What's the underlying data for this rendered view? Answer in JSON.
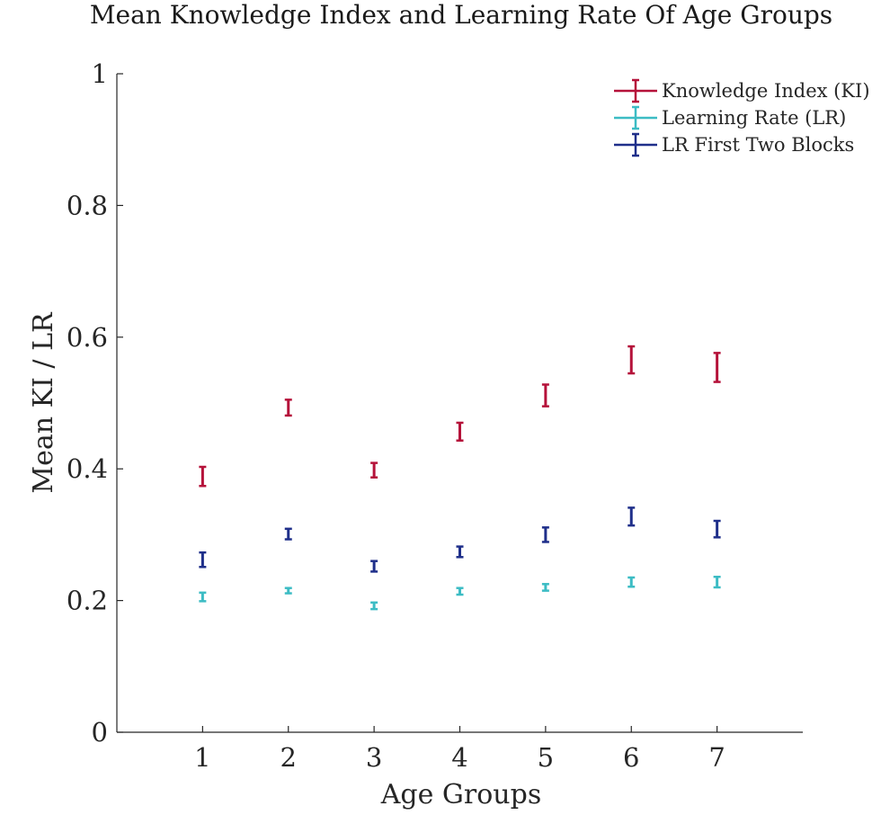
{
  "chart_data": {
    "type": "errorbar",
    "title": "Mean Knowledge Index and Learning Rate Of Age Groups",
    "xlabel": "Age Groups",
    "ylabel": "Mean KI / LR",
    "xlim": [
      0,
      8
    ],
    "ylim": [
      0,
      1
    ],
    "x": [
      1,
      2,
      3,
      4,
      5,
      6,
      7
    ],
    "xticks": [
      "1",
      "2",
      "3",
      "4",
      "5",
      "6",
      "7"
    ],
    "yticks": [
      "0",
      "0.2",
      "0.4",
      "0.6",
      "0.8",
      "1"
    ],
    "ytick_values": [
      0,
      0.2,
      0.4,
      0.6,
      0.8,
      1
    ],
    "grid": false,
    "legend_position": "top-right",
    "series": [
      {
        "name": "Knowledge Index (KI)",
        "color": "#b5123a",
        "low": [
          0.374,
          0.481,
          0.387,
          0.443,
          0.495,
          0.545,
          0.532
        ],
        "high": [
          0.403,
          0.505,
          0.409,
          0.47,
          0.528,
          0.586,
          0.576
        ]
      },
      {
        "name": "Learning Rate (LR)",
        "color": "#3cbcc4",
        "low": [
          0.199,
          0.211,
          0.187,
          0.209,
          0.215,
          0.221,
          0.22
        ],
        "high": [
          0.212,
          0.219,
          0.197,
          0.219,
          0.225,
          0.235,
          0.236
        ]
      },
      {
        "name": "LR First Two Blocks",
        "color": "#1f2f8a",
        "low": [
          0.251,
          0.293,
          0.244,
          0.266,
          0.289,
          0.314,
          0.296
        ],
        "high": [
          0.273,
          0.309,
          0.26,
          0.282,
          0.311,
          0.341,
          0.321
        ]
      }
    ]
  }
}
